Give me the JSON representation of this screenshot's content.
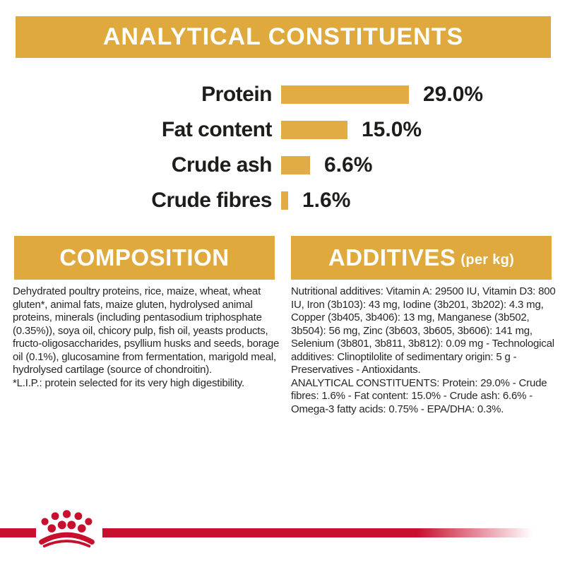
{
  "colors": {
    "gold_banner": "#DFA93D",
    "gold_bar": "#E2AC45",
    "brand_red": "#C8102E",
    "text_dark": "#1d1d1b",
    "banner_text": "#ffffff",
    "background": "#ffffff"
  },
  "header": {
    "title": "ANALYTICAL CONSTITUENTS"
  },
  "chart_data": {
    "type": "bar",
    "orientation": "horizontal",
    "categories": [
      "Protein",
      "Fat content",
      "Crude ash",
      "Crude fibres"
    ],
    "values": [
      29.0,
      15.0,
      6.6,
      1.6
    ],
    "value_labels": [
      "29.0%",
      "15.0%",
      "6.6%",
      "1.6%"
    ],
    "unit": "%",
    "xlim": [
      0,
      30
    ],
    "bar_color": "#E2AC45",
    "grid": false,
    "value_label_position": "right-of-bar"
  },
  "sections": {
    "composition": {
      "title": "COMPOSITION",
      "body": "Dehydrated poultry proteins, rice, maize, wheat, wheat gluten*, animal fats, maize gluten, hydrolysed animal proteins, minerals (including pentasodium triphosphate (0.35%)), soya oil, chicory pulp, fish oil, yeasts products, fructo-oligosaccharides, psyllium husks and seeds, borage oil (0.1%), glucosamine from fermentation, marigold meal, hydrolysed cartilage (source of chondroitin).",
      "footnote": "*L.I.P.: protein selected for its very high digestibility."
    },
    "additives": {
      "title": "ADDITIVES",
      "title_suffix": "(per kg)",
      "body": "Nutritional additives: Vitamin A: 29500 IU, Vitamin D3: 800 IU, Iron (3b103): 43 mg, Iodine (3b201, 3b202): 4.3 mg, Copper (3b405, 3b406): 13 mg, Manganese (3b502, 3b504): 56 mg, Zinc (3b603, 3b605, 3b606): 141 mg, Selenium (3b801, 3b811, 3b812): 0.09 mg - Technological additives: Clinoptilolite of sedimentary origin: 5 g - Preservatives - Antioxidants.",
      "summary": "ANALYTICAL CONSTITUENTS: Protein: 29.0% - Crude fibres: 1.6% - Fat content: 15.0% - Crude ash: 6.6% - Omega-3 fatty acids: 0.75% - EPA/DHA: 0.3%."
    }
  },
  "footer": {
    "logo": "royal-canin-crown-paw"
  }
}
